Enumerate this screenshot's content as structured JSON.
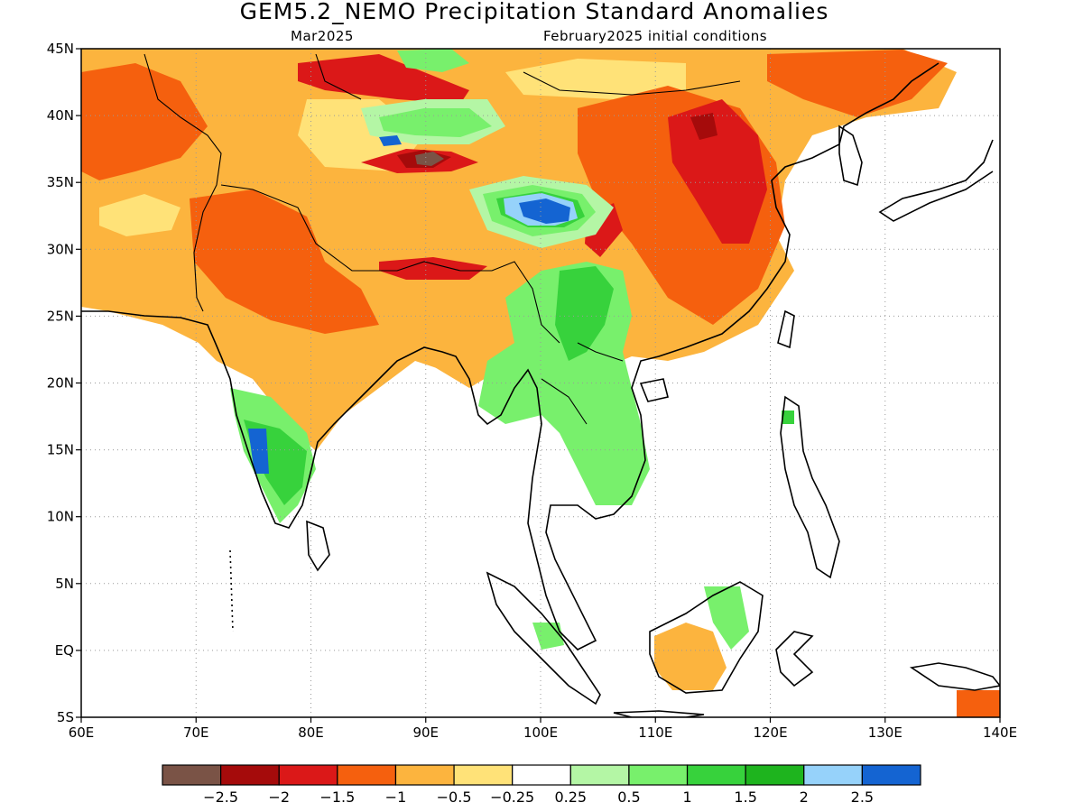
{
  "title": "GEM5.2_NEMO Precipitation Standard Anomalies",
  "subtitle_left": "Mar2025",
  "subtitle_right": "February2025 initial conditions",
  "map": {
    "lon_range": [
      60,
      140
    ],
    "lat_range": [
      -5,
      45
    ],
    "lon_ticks": [
      "60E",
      "70E",
      "80E",
      "90E",
      "100E",
      "110E",
      "120E",
      "130E",
      "140E"
    ],
    "lat_ticks": [
      "45N",
      "40N",
      "35N",
      "30N",
      "25N",
      "20N",
      "15N",
      "10N",
      "5N",
      "EQ",
      "5S"
    ],
    "grid": true
  },
  "colorbar": {
    "colors": [
      "#7a5346",
      "#a50b0b",
      "#db1818",
      "#f5600e",
      "#fcb43e",
      "#ffe278",
      "#ffffff",
      "#b4f6a5",
      "#78f06c",
      "#37d23c",
      "#1eb41e",
      "#96d2fa",
      "#1464d2"
    ],
    "labels": [
      "−2.5",
      "−2",
      "−1.5",
      "−1",
      "−0.5",
      "−0.25",
      "0.25",
      "0.5",
      "1",
      "1.5",
      "2",
      "2.5"
    ]
  }
}
